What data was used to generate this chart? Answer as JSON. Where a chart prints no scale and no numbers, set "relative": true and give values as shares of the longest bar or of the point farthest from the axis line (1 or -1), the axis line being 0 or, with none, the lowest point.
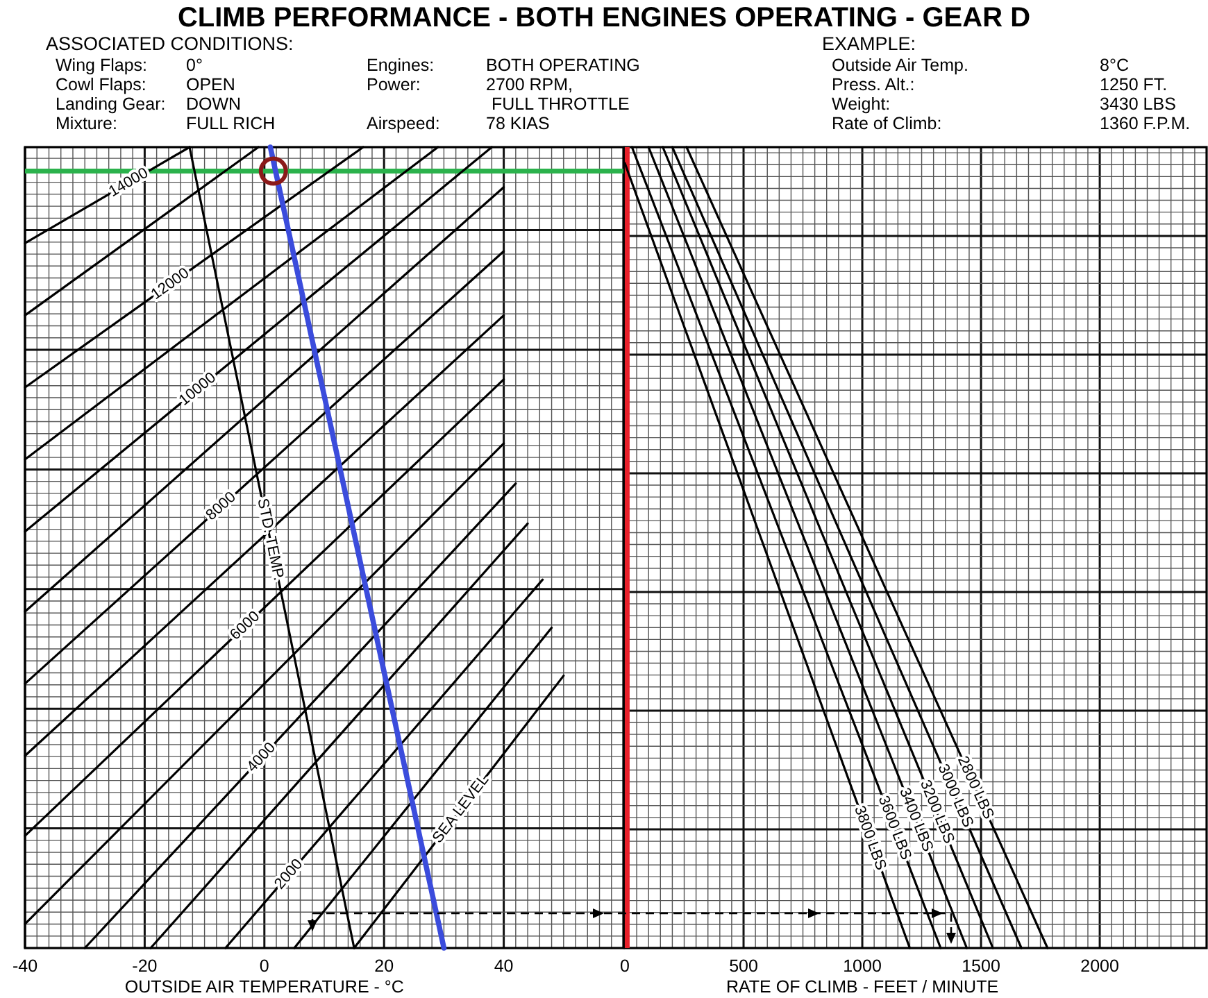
{
  "chart_data": [
    {
      "type": "line",
      "title": "CLIMB PERFORMANCE - BOTH ENGINES OPERATING - GEAR D",
      "xlabel": "OUTSIDE AIR TEMPERATURE - °C",
      "relative": true,
      "xlim": [
        -40,
        60
      ],
      "xticks": [
        -40,
        {
          "value": -38,
          "label": null
        },
        {
          "value": -36,
          "label": null
        },
        {
          "value": -34,
          "label": null
        },
        {
          "value": -32,
          "label": null
        },
        {
          "value": -30,
          "label": null
        },
        {
          "value": -28,
          "label": null
        },
        {
          "value": -26,
          "label": null
        },
        {
          "value": -24,
          "label": null
        },
        {
          "value": -22,
          "label": null
        },
        -20,
        {
          "value": -18,
          "label": null
        },
        {
          "value": -16,
          "label": null
        },
        {
          "value": -14,
          "label": null
        },
        {
          "value": -12,
          "label": null
        },
        {
          "value": -10,
          "label": null
        },
        {
          "value": -8,
          "label": null
        },
        {
          "value": -6,
          "label": null
        },
        {
          "value": -4,
          "label": null
        },
        {
          "value": -2,
          "label": null
        },
        0,
        {
          "value": 2,
          "label": null
        },
        {
          "value": 4,
          "label": null
        },
        {
          "value": 6,
          "label": null
        },
        {
          "value": 8,
          "label": null
        },
        {
          "value": 10,
          "label": null
        },
        {
          "value": 12,
          "label": null
        },
        {
          "value": 14,
          "label": null
        },
        {
          "value": 16,
          "label": null
        },
        {
          "value": 18,
          "label": null
        },
        20,
        {
          "value": 22,
          "label": null
        },
        {
          "value": 24,
          "label": null
        },
        {
          "value": 26,
          "label": null
        },
        {
          "value": 28,
          "label": null
        },
        {
          "value": 30,
          "label": null
        },
        {
          "value": 32,
          "label": null
        },
        {
          "value": 34,
          "label": null
        },
        {
          "value": 36,
          "label": null
        },
        {
          "value": 38,
          "label": null
        },
        40,
        {
          "value": 42,
          "label": null
        },
        {
          "value": 44,
          "label": null
        },
        {
          "value": 46,
          "label": null
        },
        {
          "value": 48,
          "label": null
        },
        {
          "value": 50,
          "label": null
        },
        {
          "value": 52,
          "label": null
        },
        {
          "value": 54,
          "label": null
        },
        {
          "value": 56,
          "label": null
        },
        {
          "value": 58,
          "label": null
        }
      ],
      "grid": true,
      "annotations": [
        "ASSOCIATED CONDITIONS:",
        "Wing Flaps:",
        "0°",
        "Cowl Flaps:",
        "OPEN",
        "Landing Gear:",
        "DOWN",
        "Mixture:",
        "FULL RICH",
        "Engines:",
        "BOTH OPERATING",
        "Power:",
        "2700 RPM,",
        "FULL THROTTLE",
        "Airspeed:",
        "78 KIAS"
      ],
      "ref_lines": [
        {
          "axis": "y",
          "value": 0.97,
          "color": "#2bb24c"
        }
      ],
      "series": [
        {
          "name": "SEA LEVEL",
          "color": "#000000",
          "x": [
            15,
            50
          ],
          "values": [
            0,
            0.34
          ]
        },
        {
          "color": "#000000",
          "x": [
            5,
            48
          ],
          "values": [
            0,
            0.4
          ]
        },
        {
          "name": "2000",
          "color": "#000000",
          "x": [
            -6.5,
            46.5
          ],
          "values": [
            0,
            0.46
          ]
        },
        {
          "color": "#000000",
          "x": [
            -19,
            44
          ],
          "values": [
            0,
            0.53
          ]
        },
        {
          "name": "4000",
          "color": "#000000",
          "x": [
            -30,
            42
          ],
          "values": [
            0,
            0.58
          ]
        },
        {
          "color": "#000000",
          "x": [
            -40,
            40
          ],
          "values": [
            0.03,
            0.63
          ]
        },
        {
          "name": "6000",
          "color": "#000000",
          "x": [
            -40,
            40
          ],
          "values": [
            0.14,
            0.71
          ]
        },
        {
          "color": "#000000",
          "x": [
            -40,
            40
          ],
          "values": [
            0.24,
            0.79
          ]
        },
        {
          "name": "8000",
          "color": "#000000",
          "x": [
            -40,
            40
          ],
          "values": [
            0.33,
            0.87
          ]
        },
        {
          "color": "#000000",
          "x": [
            -40,
            40
          ],
          "values": [
            0.42,
            0.95
          ]
        },
        {
          "name": "10000",
          "color": "#000000",
          "x": [
            -40,
            38
          ],
          "values": [
            0.52,
            1
          ]
        },
        {
          "color": "#000000",
          "x": [
            -40,
            29
          ],
          "values": [
            0.61,
            1
          ]
        },
        {
          "name": "12000",
          "color": "#000000",
          "x": [
            -40,
            16.5
          ],
          "values": [
            0.7,
            1
          ]
        },
        {
          "color": "#000000",
          "x": [
            -40,
            -1
          ],
          "values": [
            0.79,
            1
          ]
        },
        {
          "name": "14000",
          "color": "#000000",
          "x": [
            -40,
            -12.5
          ],
          "values": [
            0.88,
            1
          ]
        },
        {
          "name": "STD. TEMP.",
          "color": "#000000",
          "x": [
            -12.5,
            15
          ],
          "values": [
            1,
            0
          ]
        },
        {
          "color": "#3b4cdc",
          "x": [
            1,
            30
          ],
          "values": [
            1,
            0
          ]
        },
        {
          "type": "scatter",
          "marker": "circle",
          "color": "#8b1a1a",
          "x": [
            1.5
          ],
          "values": [
            0.97
          ]
        }
      ]
    },
    {
      "type": "line",
      "xlabel": "RATE OF CLIMB - FEET / MINUTE",
      "relative": true,
      "xlim": [
        0,
        2450
      ],
      "xticks": [
        0,
        {
          "value": 50,
          "label": null
        },
        {
          "value": 100,
          "label": null
        },
        {
          "value": 150,
          "label": null
        },
        {
          "value": 200,
          "label": null
        },
        {
          "value": 250,
          "label": null
        },
        {
          "value": 300,
          "label": null
        },
        {
          "value": 350,
          "label": null
        },
        {
          "value": 400,
          "label": null
        },
        {
          "value": 450,
          "label": null
        },
        500,
        {
          "value": 550,
          "label": null
        },
        {
          "value": 600,
          "label": null
        },
        {
          "value": 650,
          "label": null
        },
        {
          "value": 700,
          "label": null
        },
        {
          "value": 750,
          "label": null
        },
        {
          "value": 800,
          "label": null
        },
        {
          "value": 850,
          "label": null
        },
        {
          "value": 900,
          "label": null
        },
        {
          "value": 950,
          "label": null
        },
        1000,
        {
          "value": 1050,
          "label": null
        },
        {
          "value": 1100,
          "label": null
        },
        {
          "value": 1150,
          "label": null
        },
        {
          "value": 1200,
          "label": null
        },
        {
          "value": 1250,
          "label": null
        },
        {
          "value": 1300,
          "label": null
        },
        {
          "value": 1350,
          "label": null
        },
        {
          "value": 1400,
          "label": null
        },
        {
          "value": 1450,
          "label": null
        },
        1500,
        {
          "value": 1550,
          "label": null
        },
        {
          "value": 1600,
          "label": null
        },
        {
          "value": 1650,
          "label": null
        },
        {
          "value": 1700,
          "label": null
        },
        {
          "value": 1750,
          "label": null
        },
        {
          "value": 1800,
          "label": null
        },
        {
          "value": 1850,
          "label": null
        },
        {
          "value": 1900,
          "label": null
        },
        {
          "value": 1950,
          "label": null
        },
        2000,
        {
          "value": 2050,
          "label": null
        },
        {
          "value": 2100,
          "label": null
        },
        {
          "value": 2150,
          "label": null
        },
        {
          "value": 2200,
          "label": null
        },
        {
          "value": 2250,
          "label": null
        },
        {
          "value": 2300,
          "label": null
        },
        {
          "value": 2350,
          "label": null
        },
        {
          "value": 2400,
          "label": null
        }
      ],
      "grid": true,
      "annotations": [
        "EXAMPLE:",
        "Outside Air Temp.",
        "8°C",
        "Press. Alt.:",
        "1250 FT.",
        "Weight:",
        "3430 LBS",
        "Rate of Climb:",
        "1360 F.P.M."
      ],
      "ref_lines": [
        {
          "axis": "x",
          "value": 10,
          "color": "#e8202a"
        }
      ],
      "series": [
        {
          "name": "2800 LBS",
          "color": "#000000",
          "x": [
            260,
            1780
          ],
          "values": [
            1,
            0
          ]
        },
        {
          "name": "3000 LBS",
          "color": "#000000",
          "x": [
            200,
            1670
          ],
          "values": [
            1,
            0
          ]
        },
        {
          "name": "3200 LBS",
          "color": "#000000",
          "x": [
            160,
            1550
          ],
          "values": [
            1,
            0
          ]
        },
        {
          "name": "3400 LBS",
          "color": "#000000",
          "x": [
            100,
            1440
          ],
          "values": [
            1,
            0
          ]
        },
        {
          "name": "3600 LBS",
          "color": "#000000",
          "x": [
            30,
            1330
          ],
          "values": [
            1,
            0
          ]
        },
        {
          "name": "3800 LBS",
          "color": "#000000",
          "x": [
            0,
            1200
          ],
          "values": [
            0.98,
            0
          ]
        }
      ]
    }
  ]
}
